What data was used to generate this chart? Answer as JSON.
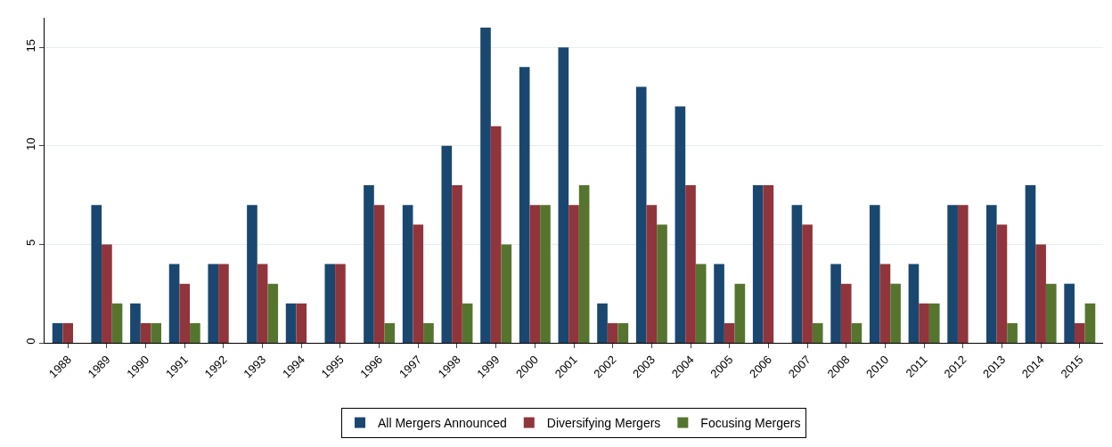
{
  "chart_data": {
    "type": "bar",
    "categories": [
      "1988",
      "1989",
      "1990",
      "1991",
      "1992",
      "1993",
      "1994",
      "1995",
      "1996",
      "1997",
      "1998",
      "1999",
      "2000",
      "2001",
      "2002",
      "2003",
      "2004",
      "2005",
      "2006",
      "2007",
      "2008",
      "2010",
      "2011",
      "2012",
      "2013",
      "2014",
      "2015"
    ],
    "series": [
      {
        "name": "All Mergers Announced",
        "color": "#1a476f",
        "values": [
          1,
          7,
          2,
          4,
          4,
          7,
          2,
          4,
          8,
          7,
          10,
          16,
          14,
          15,
          2,
          13,
          12,
          4,
          8,
          7,
          4,
          7,
          4,
          7,
          7,
          8,
          3
        ]
      },
      {
        "name": "Diversifying Mergers",
        "color": "#90353b",
        "values": [
          1,
          5,
          1,
          3,
          4,
          4,
          2,
          4,
          7,
          6,
          8,
          11,
          7,
          7,
          1,
          7,
          8,
          1,
          8,
          6,
          3,
          4,
          2,
          7,
          6,
          5,
          1
        ]
      },
      {
        "name": "Focusing Mergers",
        "color": "#55752f",
        "values": [
          0,
          2,
          1,
          1,
          0,
          3,
          0,
          0,
          1,
          1,
          2,
          5,
          7,
          8,
          1,
          6,
          4,
          3,
          0,
          1,
          1,
          3,
          2,
          0,
          1,
          3,
          2
        ]
      }
    ],
    "ylim": [
      0,
      16.5
    ],
    "yticks": [
      0,
      5,
      10,
      15
    ],
    "grid": "y",
    "legend": "bottom"
  }
}
